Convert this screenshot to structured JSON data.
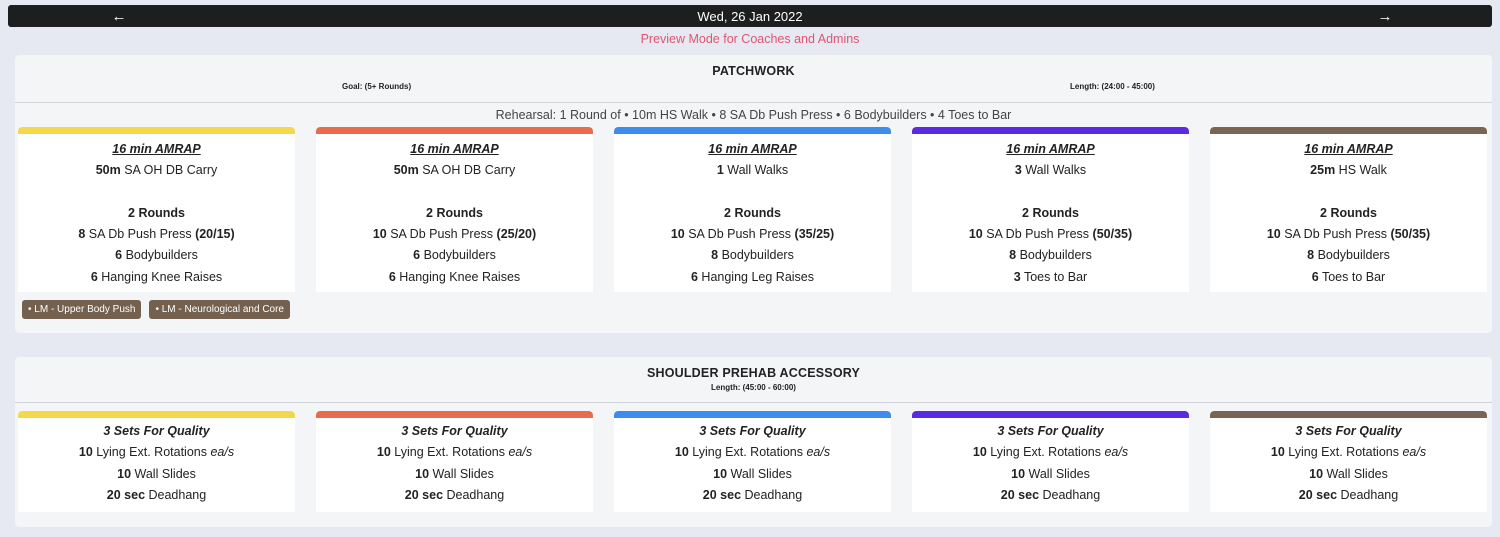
{
  "header": {
    "date": "Wed, 26 Jan 2022",
    "prev_icon": "←",
    "next_icon": "→"
  },
  "preview_text": "Preview Mode for Coaches and Admins",
  "colors": {
    "yellow": "#f5d84a",
    "orange": "#ea6a4c",
    "blue": "#3d8cf0",
    "purple": "#5a2be2",
    "brown": "#7a6555"
  },
  "patchwork": {
    "title": "PATCHWORK",
    "goal": "Goal: (5+ Rounds)",
    "length": "Length: (24:00 - 45:00)",
    "rehearsal": "Rehearsal: 1 Round of • 10m HS Walk • 8 SA Db Push Press • 6 Bodybuilders • 4 Toes to Bar",
    "tags": [
      "• LM - Upper Body Push",
      "• LM - Neurological and Core"
    ],
    "cards": [
      {
        "title": "16 min AMRAP",
        "l1a": "50m",
        "l1b": " SA OH DB Carry",
        "rounds": "2 Rounds",
        "l2a": "8",
        "l2b": " SA Db Push Press ",
        "l2c": "(20/15)",
        "l3a": "6",
        "l3b": " Bodybuilders",
        "l4a": "6",
        "l4b": " Hanging Knee Raises"
      },
      {
        "title": "16 min AMRAP",
        "l1a": "50m",
        "l1b": " SA OH DB Carry",
        "rounds": "2 Rounds",
        "l2a": "10",
        "l2b": " SA Db Push Press ",
        "l2c": "(25/20)",
        "l3a": "6",
        "l3b": " Bodybuilders",
        "l4a": "6",
        "l4b": " Hanging Knee Raises"
      },
      {
        "title": "16 min AMRAP",
        "l1a": "1",
        "l1b": " Wall Walks",
        "rounds": "2 Rounds",
        "l2a": "10",
        "l2b": " SA Db Push Press ",
        "l2c": "(35/25)",
        "l3a": "8",
        "l3b": " Bodybuilders",
        "l4a": "6",
        "l4b": " Hanging Leg Raises"
      },
      {
        "title": "16 min AMRAP",
        "l1a": "3",
        "l1b": " Wall Walks",
        "rounds": "2 Rounds",
        "l2a": "10",
        "l2b": " SA Db Push Press ",
        "l2c": "(50/35)",
        "l3a": "8",
        "l3b": " Bodybuilders",
        "l4a": "3",
        "l4b": " Toes to Bar"
      },
      {
        "title": "16 min AMRAP",
        "l1a": "25m",
        "l1b": " HS Walk",
        "rounds": "2 Rounds",
        "l2a": "10",
        "l2b": " SA Db Push Press ",
        "l2c": "(50/35)",
        "l3a": "8",
        "l3b": " Bodybuilders",
        "l4a": "6",
        "l4b": " Toes to Bar"
      }
    ]
  },
  "shoulder": {
    "title": "SHOULDER PREHAB ACCESSORY",
    "length": "Length: (45:00 - 60:00)",
    "cards": [
      {
        "title": "3 Sets For Quality",
        "l1a": "10",
        "l1b": " Lying Ext. Rotations ",
        "l1c": "ea/s",
        "l2a": "10",
        "l2b": " Wall Slides",
        "l3a": "20 sec",
        "l3b": " Deadhang"
      },
      {
        "title": "3 Sets For Quality",
        "l1a": "10",
        "l1b": " Lying Ext. Rotations ",
        "l1c": "ea/s",
        "l2a": "10",
        "l2b": " Wall Slides",
        "l3a": "20 sec",
        "l3b": " Deadhang"
      },
      {
        "title": "3 Sets For Quality",
        "l1a": "10",
        "l1b": " Lying Ext. Rotations ",
        "l1c": "ea/s",
        "l2a": "10",
        "l2b": " Wall Slides",
        "l3a": "20 sec",
        "l3b": " Deadhang"
      },
      {
        "title": "3 Sets For Quality",
        "l1a": "10",
        "l1b": " Lying Ext. Rotations ",
        "l1c": "ea/s",
        "l2a": "10",
        "l2b": " Wall Slides",
        "l3a": "20 sec",
        "l3b": " Deadhang"
      },
      {
        "title": "3 Sets For Quality",
        "l1a": "10",
        "l1b": " Lying Ext. Rotations ",
        "l1c": "ea/s",
        "l2a": "10",
        "l2b": " Wall Slides",
        "l3a": "20 sec",
        "l3b": " Deadhang"
      }
    ]
  }
}
